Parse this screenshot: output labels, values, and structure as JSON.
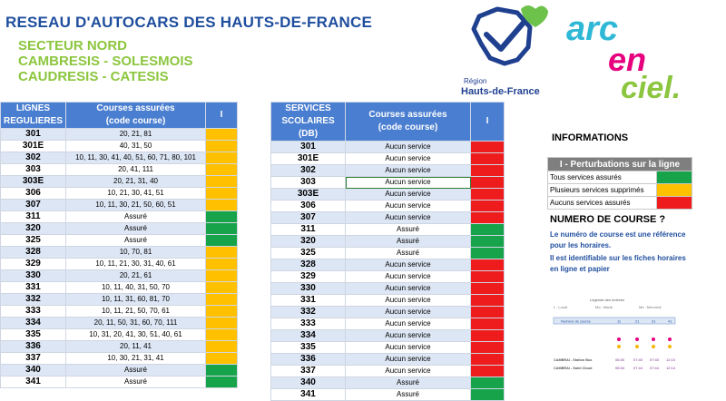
{
  "header": {
    "title": "RESEAU D'AUTOCARS DES HAUTS-DE-FRANCE",
    "sector": "SECTEUR NORD",
    "line2": "CAMBRESIS - SOLESMOIS",
    "line3": "CAUDRESIS - CATESIS"
  },
  "logos": {
    "region_word": "Région",
    "region_name": "Hauts-de-France",
    "arc_1": "arc",
    "arc_2": "en",
    "arc_3": "ciel."
  },
  "regular": {
    "col1_l1": "LIGNES",
    "col1_l2": "REGULIERES",
    "col2_l1": "Courses assurées",
    "col2_l2": "(code course)",
    "col3": "I",
    "rows": [
      {
        "line": "301",
        "courses": "20, 21, 81",
        "status": "orange"
      },
      {
        "line": "301E",
        "courses": "40, 31, 50",
        "status": "orange"
      },
      {
        "line": "302",
        "courses": "10, 11, 30, 41, 40, 51, 60, 71, 80, 101",
        "status": "orange"
      },
      {
        "line": "303",
        "courses": "20, 41, 111",
        "status": "orange"
      },
      {
        "line": "303E",
        "courses": "20, 21, 31, 40",
        "status": "orange"
      },
      {
        "line": "306",
        "courses": "10, 21, 30, 41, 51",
        "status": "orange"
      },
      {
        "line": "307",
        "courses": "10, 11, 30, 21, 50, 60, 51",
        "status": "orange"
      },
      {
        "line": "311",
        "courses": "Assuré",
        "status": "green"
      },
      {
        "line": "320",
        "courses": "Assuré",
        "status": "green"
      },
      {
        "line": "325",
        "courses": "Assuré",
        "status": "green"
      },
      {
        "line": "328",
        "courses": "10, 70, 81",
        "status": "orange"
      },
      {
        "line": "329",
        "courses": "10, 11, 21, 30, 31, 40, 61",
        "status": "orange"
      },
      {
        "line": "330",
        "courses": "20, 21, 61",
        "status": "orange"
      },
      {
        "line": "331",
        "courses": "10, 11, 40, 31, 50, 70",
        "status": "orange"
      },
      {
        "line": "332",
        "courses": "10, 11, 31, 60, 81, 70",
        "status": "orange"
      },
      {
        "line": "333",
        "courses": "10, 11, 21, 50, 70, 61",
        "status": "orange"
      },
      {
        "line": "334",
        "courses": "20, 11, 50, 31, 60, 70, 111",
        "status": "orange"
      },
      {
        "line": "335",
        "courses": "10, 31, 20, 41, 30, 51, 40, 61",
        "status": "orange"
      },
      {
        "line": "336",
        "courses": "20, 11, 41",
        "status": "orange"
      },
      {
        "line": "337",
        "courses": "10, 30, 21, 31, 41",
        "status": "orange"
      },
      {
        "line": "340",
        "courses": "Assuré",
        "status": "green"
      },
      {
        "line": "341",
        "courses": "Assuré",
        "status": "green"
      }
    ]
  },
  "school": {
    "col1_l1": "SERVICES",
    "col1_l2": "SCOLAIRES (DB)",
    "col2_l1": "Courses assurées",
    "col2_l2": "(code course)",
    "col3": "I",
    "rows": [
      {
        "line": "301",
        "courses": "Aucun service",
        "status": "red"
      },
      {
        "line": "301E",
        "courses": "Aucun service",
        "status": "red"
      },
      {
        "line": "302",
        "courses": "Aucun service",
        "status": "red"
      },
      {
        "line": "303",
        "courses": "Aucun service",
        "status": "red"
      },
      {
        "line": "303E",
        "courses": "Aucun service",
        "status": "red"
      },
      {
        "line": "306",
        "courses": "Aucun service",
        "status": "red"
      },
      {
        "line": "307",
        "courses": "Aucun service",
        "status": "red"
      },
      {
        "line": "311",
        "courses": "Assuré",
        "status": "green"
      },
      {
        "line": "320",
        "courses": "Assuré",
        "status": "green"
      },
      {
        "line": "325",
        "courses": "Assuré",
        "status": "green"
      },
      {
        "line": "328",
        "courses": "Aucun service",
        "status": "red"
      },
      {
        "line": "329",
        "courses": "Aucun service",
        "status": "red"
      },
      {
        "line": "330",
        "courses": "Aucun service",
        "status": "red"
      },
      {
        "line": "331",
        "courses": "Aucun service",
        "status": "red"
      },
      {
        "line": "332",
        "courses": "Aucun service",
        "status": "red"
      },
      {
        "line": "333",
        "courses": "Aucun service",
        "status": "red"
      },
      {
        "line": "334",
        "courses": "Aucun service",
        "status": "red"
      },
      {
        "line": "335",
        "courses": "Aucun service",
        "status": "red"
      },
      {
        "line": "336",
        "courses": "Aucun service",
        "status": "red"
      },
      {
        "line": "337",
        "courses": "Aucun service",
        "status": "red"
      },
      {
        "line": "340",
        "courses": "Assuré",
        "status": "green"
      },
      {
        "line": "341",
        "courses": "Assuré",
        "status": "green"
      }
    ]
  },
  "info": {
    "title": "INFORMATIONS",
    "legend_head": "I - Perturbations sur la ligne",
    "legend": [
      {
        "label": "Tous services assurés",
        "color": "#17a34a"
      },
      {
        "label": "Plusieurs services supprimés",
        "color": "#ffc000"
      },
      {
        "label": "Aucuns services assurés",
        "color": "#ee1c1c"
      }
    ],
    "num_title": "NUMERO DE COURSE ?",
    "num_text_1": "Le numéro de course est une référence",
    "num_text_2": "pour les horaires.",
    "num_text_3": "Il est identifiable sur les fiches horaires",
    "num_text_4": "en ligne et papier"
  },
  "mini": {
    "legend_title": "Legende des indexes",
    "day_l": "L : Lundi",
    "day_ma": "Ma : Mardi",
    "day_me": "Me : Mercredi",
    "course_label": "Numéro de course",
    "course_values": [
      "11",
      "21",
      "31",
      "41"
    ],
    "stop1": "CAMBRAI - Station Bus",
    "stop2": "CAMBRAI - Saint Cloud",
    "times1": [
      "06:30",
      "07:40",
      "07:40",
      "12:10"
    ],
    "times2": [
      "06:34",
      "07:44",
      "07:44",
      "12:14"
    ]
  },
  "colors": {
    "title_blue": "#1f4e9e",
    "subtitle_green": "#8cc63f",
    "header_blue": "#4a7ed0",
    "green": "#17a34a",
    "orange": "#ffc000",
    "red": "#ee1c1c"
  }
}
